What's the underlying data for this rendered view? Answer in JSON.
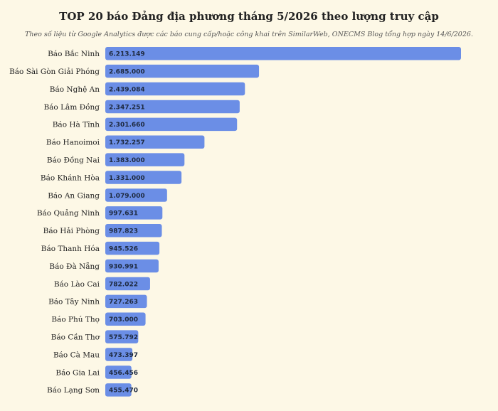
{
  "chart_data": {
    "type": "bar",
    "orientation": "horizontal",
    "title": "TOP 20 báo Đảng địa phương tháng 5/2026 theo lượng truy cập",
    "subtitle": "Theo số liệu từ Google Analytics được các báo cung cấp/hoặc công khai trên SimilarWeb, ONECMS Blog tổng hợp ngày 14/6/2026.",
    "categories": [
      "Báo Bắc Ninh",
      "Báo Sài Gòn Giải Phóng",
      "Báo Nghệ An",
      "Báo Lâm Đồng",
      "Báo Hà Tĩnh",
      "Báo Hanoimoi",
      "Báo Đồng Nai",
      "Báo Khánh Hòa",
      "Báo An Giang",
      "Báo Quảng Ninh",
      "Báo Hải Phòng",
      "Báo Thanh Hóa",
      "Báo Đà Nẵng",
      "Báo Lào Cai",
      "Báo Tây Ninh",
      "Báo Phú Thọ",
      "Báo Cần Thơ",
      "Báo Cà Mau",
      "Báo Gia Lai",
      "Báo Lạng Sơn"
    ],
    "values": [
      6213149,
      2685000,
      2439084,
      2347251,
      2301660,
      1732257,
      1383000,
      1331000,
      1079000,
      997631,
      987823,
      945526,
      930991,
      782022,
      727263,
      703000,
      575792,
      473397,
      456456,
      455470
    ],
    "value_labels": [
      "6.213.149",
      "2.685.000",
      "2.439.084",
      "2.347.251",
      "2.301.660",
      "1.732.257",
      "1.383.000",
      "1.331.000",
      "1.079.000",
      "997.631",
      "987.823",
      "945.526",
      "930.991",
      "782.022",
      "727.263",
      "703.000",
      "575.792",
      "473.397",
      "456.456",
      "455.470"
    ],
    "xlim": [
      0,
      6213149
    ],
    "grid": false,
    "legend": "none",
    "bar_color": "#6b8ee6"
  }
}
